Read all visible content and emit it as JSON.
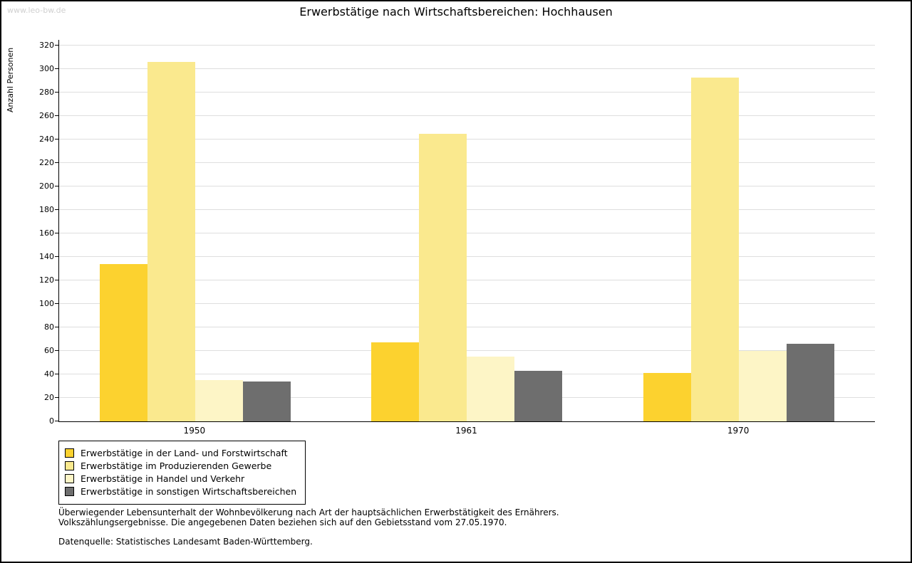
{
  "watermark": "www.leo-bw.de",
  "title": "Erwerbstätige nach Wirtschaftsbereichen: Hochhausen",
  "chart_data": {
    "type": "bar",
    "title": "Erwerbstätige nach Wirtschaftsbereichen: Hochhausen",
    "xlabel": "",
    "ylabel": "Anzahl Personen",
    "ylim": [
      0,
      320
    ],
    "ytick_step": 20,
    "grid": true,
    "legend_position": "bottom-left",
    "categories": [
      "1950",
      "1961",
      "1970"
    ],
    "series": [
      {
        "name": "Erwerbstätige in der Land- und Forstwirtschaft",
        "color": "#FCD22F",
        "values": [
          134,
          67,
          41
        ]
      },
      {
        "name": "Erwerbstätige im Produzierenden Gewerbe",
        "color": "#FAE98E",
        "values": [
          306,
          245,
          293
        ]
      },
      {
        "name": "Erwerbstätige in Handel und Verkehr",
        "color": "#FDF5C6",
        "values": [
          35,
          55,
          60
        ]
      },
      {
        "name": "Erwerbstätige in sonstigen Wirtschaftsbereichen",
        "color": "#6E6E6E",
        "values": [
          34,
          43,
          66
        ]
      }
    ]
  },
  "footnote_lines": [
    "Überwiegender Lebensunterhalt der Wohnbevölkerung nach Art der hauptsächlichen Erwerbstätigkeit des Ernährers.",
    "Volkszählungsergebnisse. Die angegebenen Daten beziehen sich auf den Gebietsstand vom 27.05.1970."
  ],
  "source": "Datenquelle: Statistisches Landesamt Baden-Württemberg."
}
